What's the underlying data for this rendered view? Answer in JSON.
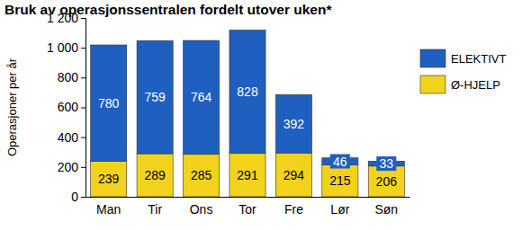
{
  "chart_data": {
    "type": "bar",
    "title": "Bruk av operasjonssentralen fordelt utover uken*",
    "y_label": "Operasjoner per år",
    "categories": [
      "Man",
      "Tir",
      "Ons",
      "Tor",
      "Fre",
      "Lør",
      "Søn"
    ],
    "series": [
      {
        "name": "Ø-HJELP",
        "color": "#f2d21b",
        "values": [
          239,
          289,
          285,
          291,
          294,
          215,
          206
        ]
      },
      {
        "name": "ELEKTIVT",
        "color": "#1f5fbf",
        "values": [
          780,
          759,
          764,
          828,
          392,
          46,
          33
        ]
      }
    ],
    "ylim": [
      0,
      1200
    ],
    "yticks": [
      0,
      200,
      400,
      600,
      800,
      {
        "value": 1000,
        "label": "1 000"
      },
      {
        "value": 1200,
        "label": "1 200"
      }
    ],
    "stacked": true,
    "data_labels": true,
    "legend": "right",
    "grid": false
  }
}
